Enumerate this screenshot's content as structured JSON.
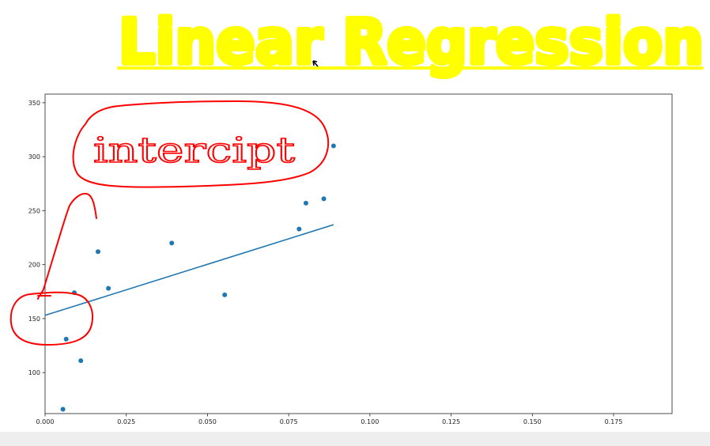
{
  "annotations": {
    "heading": "Linear Regression",
    "callout": "intercipt",
    "heading_color": "#ffff00",
    "ink_color": "#ff0000"
  },
  "chart_data": {
    "type": "scatter",
    "title": "",
    "xlabel": "",
    "ylabel": "",
    "xlim": [
      0.0,
      0.193
    ],
    "ylim": [
      62,
      358
    ],
    "x_ticks": [
      0.0,
      0.025,
      0.05,
      0.075,
      0.1,
      0.125,
      0.15,
      0.175
    ],
    "x_tick_labels": [
      "0.000",
      "0.025",
      "0.050",
      "0.075",
      "0.100",
      "0.125",
      "0.150",
      "0.175"
    ],
    "y_ticks": [
      100,
      150,
      200,
      250,
      300,
      350
    ],
    "y_tick_labels": [
      "100",
      "150",
      "200",
      "250",
      "300",
      "350"
    ],
    "grid": false,
    "series": [
      {
        "kind": "points",
        "color": "#1f77b4",
        "x": [
          0.0055,
          0.0065,
          0.009,
          0.011,
          0.0163,
          0.0195,
          0.039,
          0.0553,
          0.0782,
          0.0803,
          0.0858,
          0.0888
        ],
        "y": [
          66,
          131,
          174,
          111,
          212,
          178,
          220,
          172,
          233,
          257,
          261,
          310
        ]
      },
      {
        "kind": "line",
        "color": "#1f77b4",
        "x": [
          0.0,
          0.0888
        ],
        "y": [
          153,
          237
        ]
      }
    ]
  }
}
